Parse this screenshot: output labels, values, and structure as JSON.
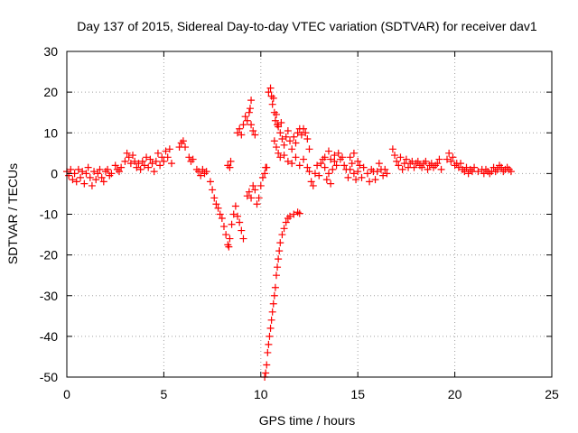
{
  "chart_data": {
    "type": "scatter",
    "title": "Day 137 of 2015, Sidereal Day-to-day VTEC variation (SDTVAR) for receiver dav1",
    "xlabel": "GPS time / hours",
    "ylabel": "SDTVAR / TECUs",
    "xlim": [
      0,
      25
    ],
    "ylim": [
      -50,
      30
    ],
    "xticks": [
      0,
      5,
      10,
      15,
      20,
      25
    ],
    "yticks": [
      -50,
      -40,
      -30,
      -20,
      -10,
      0,
      10,
      20,
      30
    ],
    "grid": true,
    "marker": "+",
    "colors": {
      "series": "#ff0000",
      "grid": "#a0a0a0",
      "axis": "#000000"
    },
    "series": [
      {
        "name": "SDTVAR",
        "points": [
          [
            0.0,
            0.5
          ],
          [
            0.1,
            -0.5
          ],
          [
            0.2,
            1.0
          ],
          [
            0.3,
            -1.5
          ],
          [
            0.4,
            0.0
          ],
          [
            0.5,
            -2.0
          ],
          [
            0.6,
            1.0
          ],
          [
            0.7,
            -1.0
          ],
          [
            0.8,
            0.5
          ],
          [
            0.9,
            -2.5
          ],
          [
            1.0,
            0.0
          ],
          [
            1.1,
            1.5
          ],
          [
            1.2,
            -1.0
          ],
          [
            1.3,
            -3.0
          ],
          [
            1.4,
            0.5
          ],
          [
            1.5,
            -1.5
          ],
          [
            1.6,
            0.0
          ],
          [
            1.7,
            1.0
          ],
          [
            1.8,
            -1.0
          ],
          [
            1.9,
            -2.0
          ],
          [
            2.0,
            0.5
          ],
          [
            2.1,
            1.0
          ],
          [
            2.2,
            -0.5
          ],
          [
            2.3,
            0.0
          ],
          [
            2.5,
            2.0
          ],
          [
            2.6,
            1.0
          ],
          [
            2.7,
            0.5
          ],
          [
            2.8,
            1.5
          ],
          [
            3.0,
            3.0
          ],
          [
            3.1,
            5.0
          ],
          [
            3.2,
            4.0
          ],
          [
            3.3,
            2.5
          ],
          [
            3.4,
            4.5
          ],
          [
            3.5,
            3.0
          ],
          [
            3.6,
            1.5
          ],
          [
            3.7,
            2.5
          ],
          [
            3.8,
            1.0
          ],
          [
            3.9,
            3.0
          ],
          [
            4.0,
            2.0
          ],
          [
            4.1,
            4.0
          ],
          [
            4.2,
            1.5
          ],
          [
            4.3,
            3.5
          ],
          [
            4.4,
            2.5
          ],
          [
            4.5,
            0.5
          ],
          [
            4.6,
            3.0
          ],
          [
            4.7,
            5.0
          ],
          [
            4.8,
            2.0
          ],
          [
            4.9,
            4.0
          ],
          [
            5.0,
            3.0
          ],
          [
            5.1,
            5.5
          ],
          [
            5.2,
            4.0
          ],
          [
            5.3,
            6.0
          ],
          [
            5.4,
            2.5
          ],
          [
            5.8,
            6.5
          ],
          [
            5.9,
            7.5
          ],
          [
            6.0,
            8.0
          ],
          [
            6.1,
            6.5
          ],
          [
            6.3,
            4.0
          ],
          [
            6.4,
            3.0
          ],
          [
            6.5,
            3.5
          ],
          [
            6.7,
            1.0
          ],
          [
            6.8,
            0.5
          ],
          [
            6.9,
            -0.5
          ],
          [
            7.0,
            1.0
          ],
          [
            7.1,
            0.0
          ],
          [
            7.2,
            0.5
          ],
          [
            7.4,
            -2.0
          ],
          [
            7.5,
            -4.0
          ],
          [
            7.6,
            -6.0
          ],
          [
            7.7,
            -7.5
          ],
          [
            7.8,
            -8.5
          ],
          [
            7.9,
            -10.0
          ],
          [
            8.0,
            -11.0
          ],
          [
            8.1,
            -13.0
          ],
          [
            8.2,
            -15.0
          ],
          [
            8.3,
            -17.5
          ],
          [
            8.35,
            -18.0
          ],
          [
            8.4,
            -16.0
          ],
          [
            8.5,
            -12.5
          ],
          [
            8.6,
            -10.0
          ],
          [
            8.7,
            -8.0
          ],
          [
            8.8,
            -10.5
          ],
          [
            8.9,
            -12.0
          ],
          [
            9.0,
            -14.0
          ],
          [
            9.1,
            -16.0
          ],
          [
            8.3,
            2.0
          ],
          [
            8.4,
            1.5
          ],
          [
            8.45,
            3.0
          ],
          [
            8.8,
            10.0
          ],
          [
            8.9,
            11.0
          ],
          [
            9.0,
            9.5
          ],
          [
            9.1,
            12.0
          ],
          [
            9.2,
            14.0
          ],
          [
            9.3,
            13.0
          ],
          [
            9.4,
            15.0
          ],
          [
            9.5,
            18.0
          ],
          [
            9.45,
            16.0
          ],
          [
            9.5,
            12.0
          ],
          [
            9.6,
            10.5
          ],
          [
            9.7,
            9.5
          ],
          [
            9.3,
            -5.5
          ],
          [
            9.4,
            -4.5
          ],
          [
            9.5,
            -6.0
          ],
          [
            9.6,
            -3.0
          ],
          [
            9.7,
            -4.0
          ],
          [
            9.8,
            -7.5
          ],
          [
            9.9,
            -6.0
          ],
          [
            10.0,
            -3.0
          ],
          [
            10.1,
            -1.0
          ],
          [
            10.2,
            0.0
          ],
          [
            10.25,
            1.5
          ],
          [
            10.3,
            1.5
          ],
          [
            10.2,
            -50.0
          ],
          [
            10.25,
            -49.0
          ],
          [
            10.3,
            -47.0
          ],
          [
            10.35,
            -44.0
          ],
          [
            10.4,
            -42.0
          ],
          [
            10.45,
            -40.0
          ],
          [
            10.5,
            -38.0
          ],
          [
            10.55,
            -36.0
          ],
          [
            10.6,
            -34.0
          ],
          [
            10.65,
            -32.0
          ],
          [
            10.7,
            -30.0
          ],
          [
            10.75,
            -28.0
          ],
          [
            10.8,
            -25.0
          ],
          [
            10.85,
            -23.0
          ],
          [
            10.9,
            -21.0
          ],
          [
            10.95,
            -19.0
          ],
          [
            11.0,
            -17.0
          ],
          [
            11.1,
            -15.0
          ],
          [
            11.2,
            -13.5
          ],
          [
            11.3,
            -12.0
          ],
          [
            11.4,
            -11.0
          ],
          [
            11.5,
            -10.5
          ],
          [
            11.7,
            -10.0
          ],
          [
            11.9,
            -9.5
          ],
          [
            12.0,
            -9.8
          ],
          [
            10.4,
            20.0
          ],
          [
            10.5,
            21.0
          ],
          [
            10.55,
            19.0
          ],
          [
            10.6,
            17.0
          ],
          [
            10.65,
            18.5
          ],
          [
            10.7,
            15.0
          ],
          [
            10.75,
            13.0
          ],
          [
            10.8,
            14.5
          ],
          [
            10.85,
            12.0
          ],
          [
            10.9,
            11.5
          ],
          [
            11.0,
            10.0
          ],
          [
            11.05,
            12.5
          ],
          [
            11.1,
            8.5
          ],
          [
            11.2,
            7.0
          ],
          [
            11.3,
            9.0
          ],
          [
            11.4,
            10.5
          ],
          [
            11.5,
            8.0
          ],
          [
            11.6,
            6.0
          ],
          [
            11.7,
            9.0
          ],
          [
            11.8,
            7.5
          ],
          [
            11.9,
            10.0
          ],
          [
            12.0,
            11.0
          ],
          [
            12.1,
            9.5
          ],
          [
            12.2,
            11.0
          ],
          [
            12.3,
            10.0
          ],
          [
            12.4,
            8.5
          ],
          [
            12.5,
            6.0
          ],
          [
            10.7,
            8.0
          ],
          [
            10.8,
            6.5
          ],
          [
            10.9,
            5.0
          ],
          [
            11.0,
            4.0
          ],
          [
            11.2,
            4.5
          ],
          [
            11.4,
            3.0
          ],
          [
            11.6,
            2.5
          ],
          [
            11.8,
            4.0
          ],
          [
            12.0,
            2.0
          ],
          [
            12.2,
            3.5
          ],
          [
            12.4,
            1.5
          ],
          [
            12.5,
            0.5
          ],
          [
            12.6,
            -2.0
          ],
          [
            12.7,
            -3.0
          ],
          [
            12.8,
            0.0
          ],
          [
            12.9,
            2.0
          ],
          [
            13.0,
            -0.5
          ],
          [
            13.1,
            2.5
          ],
          [
            13.2,
            3.5
          ],
          [
            13.3,
            1.5
          ],
          [
            13.4,
            -1.5
          ],
          [
            13.5,
            0.0
          ],
          [
            13.6,
            -2.5
          ],
          [
            13.7,
            1.0
          ],
          [
            13.8,
            3.0
          ],
          [
            13.9,
            2.0
          ],
          [
            14.0,
            5.0
          ],
          [
            14.1,
            3.5
          ],
          [
            14.2,
            4.0
          ],
          [
            14.3,
            2.0
          ],
          [
            14.4,
            1.0
          ],
          [
            14.5,
            -1.0
          ],
          [
            14.6,
            1.0
          ],
          [
            14.7,
            2.5
          ],
          [
            14.8,
            0.0
          ],
          [
            14.9,
            -1.5
          ],
          [
            15.0,
            0.5
          ],
          [
            13.3,
            4.0
          ],
          [
            13.5,
            5.5
          ],
          [
            13.6,
            3.5
          ],
          [
            13.8,
            4.5
          ],
          [
            14.6,
            4.0
          ],
          [
            14.8,
            5.0
          ],
          [
            15.0,
            3.0
          ],
          [
            15.1,
            2.0
          ],
          [
            15.2,
            -1.0
          ],
          [
            15.3,
            1.5
          ],
          [
            15.5,
            0.0
          ],
          [
            15.6,
            -2.0
          ],
          [
            15.7,
            1.0
          ],
          [
            15.8,
            0.5
          ],
          [
            15.9,
            -1.5
          ],
          [
            16.0,
            0.5
          ],
          [
            16.1,
            2.5
          ],
          [
            16.2,
            1.0
          ],
          [
            16.3,
            -0.5
          ],
          [
            16.4,
            1.0
          ],
          [
            16.5,
            0.0
          ],
          [
            16.8,
            6.0
          ],
          [
            16.9,
            4.5
          ],
          [
            17.0,
            3.0
          ],
          [
            17.1,
            2.0
          ],
          [
            17.2,
            4.0
          ],
          [
            17.3,
            1.0
          ],
          [
            17.4,
            2.5
          ],
          [
            17.5,
            3.5
          ],
          [
            17.6,
            1.5
          ],
          [
            17.7,
            2.5
          ],
          [
            17.8,
            3.0
          ],
          [
            17.9,
            1.5
          ],
          [
            18.0,
            2.5
          ],
          [
            18.1,
            3.0
          ],
          [
            18.2,
            2.0
          ],
          [
            18.3,
            1.5
          ],
          [
            18.4,
            2.5
          ],
          [
            18.5,
            3.0
          ],
          [
            18.6,
            1.0
          ],
          [
            18.7,
            2.0
          ],
          [
            18.8,
            2.5
          ],
          [
            18.9,
            1.5
          ],
          [
            19.0,
            2.0
          ],
          [
            19.1,
            2.5
          ],
          [
            19.2,
            3.5
          ],
          [
            19.3,
            1.0
          ],
          [
            19.6,
            3.5
          ],
          [
            19.7,
            5.0
          ],
          [
            19.8,
            3.0
          ],
          [
            19.9,
            4.0
          ],
          [
            20.0,
            2.0
          ],
          [
            20.1,
            2.5
          ],
          [
            20.2,
            1.5
          ],
          [
            20.3,
            2.5
          ],
          [
            20.4,
            1.0
          ],
          [
            20.5,
            0.5
          ],
          [
            20.6,
            1.5
          ],
          [
            20.7,
            0.0
          ],
          [
            20.8,
            1.0
          ],
          [
            20.9,
            0.5
          ],
          [
            21.0,
            1.5
          ],
          [
            21.2,
            0.5
          ],
          [
            21.4,
            1.0
          ],
          [
            21.5,
            0.0
          ],
          [
            21.6,
            1.0
          ],
          [
            21.7,
            0.5
          ],
          [
            21.8,
            0.0
          ],
          [
            21.9,
            0.5
          ],
          [
            22.0,
            1.5
          ],
          [
            22.1,
            0.5
          ],
          [
            22.2,
            1.0
          ],
          [
            22.3,
            2.0
          ],
          [
            22.4,
            1.5
          ],
          [
            22.5,
            0.5
          ],
          [
            22.6,
            1.0
          ],
          [
            22.7,
            1.5
          ],
          [
            22.8,
            1.0
          ],
          [
            22.9,
            0.5
          ]
        ]
      }
    ]
  }
}
